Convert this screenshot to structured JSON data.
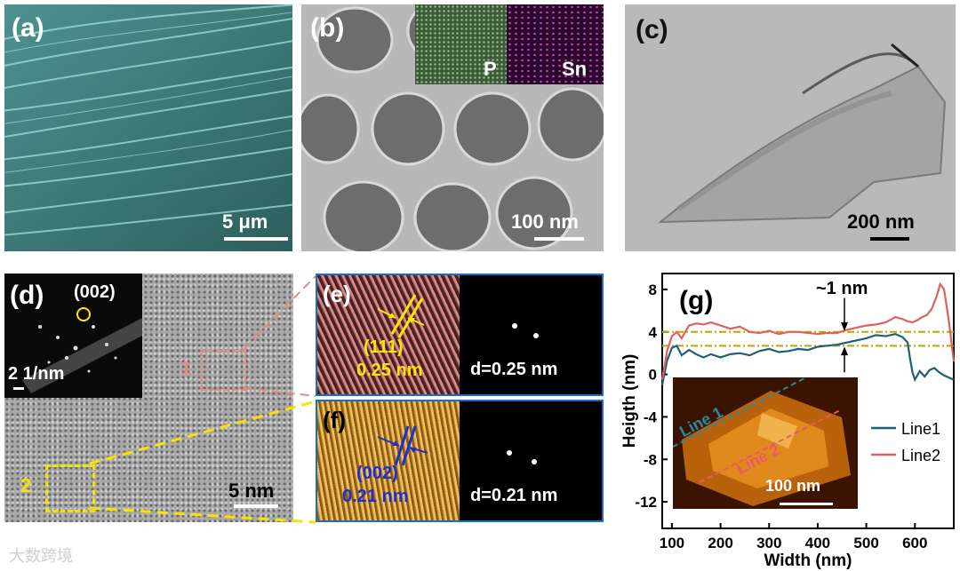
{
  "panels": {
    "a": {
      "label": "(a)",
      "scale": "5 μm"
    },
    "b": {
      "label": "(b)",
      "scale": "100 nm",
      "map_p": "P",
      "map_sn": "Sn"
    },
    "c": {
      "label": "(c)",
      "scale": "200 nm"
    },
    "d": {
      "label": "(d)",
      "scale": "5 nm",
      "saed_index": "(002)",
      "saed_scale": "2 1/nm",
      "region1": "1",
      "region2": "2"
    },
    "e": {
      "label": "(e)",
      "plane": "(111)",
      "spacing": "0.25 nm",
      "fft_d": "d=0.25 nm"
    },
    "f": {
      "label": "(f)",
      "plane": "(002)",
      "spacing": "0.21 nm",
      "fft_d": "d=0.21 nm"
    },
    "g": {
      "label": "(g)",
      "annotation": "~1 nm",
      "afm_line1": "Line 1",
      "afm_line2": "Line 2",
      "afm_scale": "100 nm"
    }
  },
  "watermark": "大数跨境",
  "colors": {
    "line1": "#1f5f7a",
    "line2": "#e0605a",
    "guide": "#b8a800"
  },
  "chart_data": {
    "type": "line",
    "xlabel": "Width (nm)",
    "ylabel": "Heigth (nm)",
    "xlim": [
      80,
      680
    ],
    "ylim": [
      -14.5,
      9.5
    ],
    "xticks": [
      "100",
      "200",
      "300",
      "400",
      "500",
      "600"
    ],
    "yticks": [
      "8",
      "4",
      "0",
      "-4",
      "-8",
      "-12"
    ],
    "guides": [
      4.0,
      2.7
    ],
    "series": [
      {
        "name": "Line1",
        "x": [
          80,
          90,
          100,
          110,
          120,
          135,
          150,
          165,
          180,
          200,
          220,
          240,
          260,
          280,
          300,
          320,
          340,
          360,
          380,
          400,
          420,
          440,
          460,
          480,
          500,
          520,
          540,
          560,
          575,
          585,
          590,
          595,
          600,
          610,
          620,
          630,
          640,
          650,
          660,
          670,
          680
        ],
        "values": [
          -1.0,
          1.3,
          2.5,
          2.7,
          1.8,
          2.3,
          1.9,
          1.6,
          1.9,
          1.6,
          1.9,
          2.0,
          1.8,
          2.2,
          2.4,
          2.1,
          2.2,
          2.4,
          2.3,
          2.6,
          2.7,
          2.8,
          3.0,
          3.2,
          3.4,
          3.7,
          3.6,
          3.8,
          3.5,
          3.0,
          1.5,
          0.2,
          -0.5,
          0.3,
          -0.2,
          0.4,
          0.6,
          0.2,
          -0.1,
          -0.3,
          -0.5
        ]
      },
      {
        "name": "Line2",
        "x": [
          80,
          90,
          100,
          110,
          120,
          135,
          150,
          165,
          180,
          200,
          220,
          240,
          260,
          280,
          300,
          320,
          340,
          360,
          380,
          400,
          420,
          440,
          460,
          480,
          500,
          520,
          540,
          560,
          575,
          585,
          595,
          605,
          615,
          625,
          635,
          645,
          652,
          660,
          670,
          680
        ],
        "values": [
          -0.5,
          2.2,
          3.6,
          4.0,
          3.4,
          4.6,
          4.8,
          4.7,
          4.9,
          4.6,
          4.3,
          4.5,
          4.0,
          3.9,
          4.1,
          3.8,
          4.0,
          4.0,
          3.9,
          3.8,
          3.9,
          3.9,
          4.2,
          4.4,
          4.6,
          4.7,
          4.9,
          5.4,
          5.2,
          5.0,
          4.9,
          5.1,
          5.4,
          5.6,
          6.2,
          7.4,
          8.5,
          8.0,
          5.0,
          1.2
        ]
      }
    ],
    "legend": [
      "Line1",
      "Line2"
    ]
  }
}
